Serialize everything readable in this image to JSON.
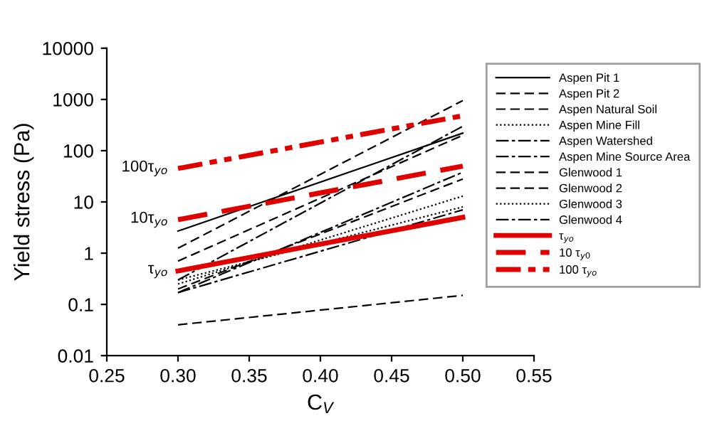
{
  "chart_data": {
    "type": "line",
    "xlabel": "C$_{V}$",
    "ylabel": "Yield stress (Pa)",
    "x": [
      0.3,
      0.5
    ],
    "series": [
      {
        "name": "Aspen Pit 1",
        "color": "#000000",
        "line_style": "solid",
        "values": [
          2.7,
          220
        ]
      },
      {
        "name": "Aspen Pit 2",
        "color": "#000000",
        "line_style": "dashed",
        "values": [
          1.25,
          950
        ]
      },
      {
        "name": "Aspen Natural Soil",
        "color": "#000000",
        "line_style": "dashed",
        "values": [
          0.7,
          200
        ]
      },
      {
        "name": "Aspen Mine Fill",
        "color": "#000000",
        "line_style": "dotted",
        "values": [
          0.25,
          13
        ]
      },
      {
        "name": "Aspen Watershed",
        "color": "#000000",
        "line_style": "dashdot",
        "values": [
          0.3,
          300
        ]
      },
      {
        "name": "Aspen Mine Source Area",
        "color": "#000000",
        "line_style": "dashdot",
        "values": [
          0.17,
          38
        ]
      },
      {
        "name": "Glenwood 1",
        "color": "#000000",
        "line_style": "dashed",
        "values": [
          0.2,
          28
        ]
      },
      {
        "name": "Glenwood 2",
        "color": "#000000",
        "line_style": "dashed",
        "values": [
          0.04,
          0.15
        ]
      },
      {
        "name": "Glenwood 3",
        "color": "#000000",
        "line_style": "dotted",
        "values": [
          0.3,
          8
        ]
      },
      {
        "name": "Glenwood 4",
        "color": "#000000",
        "line_style": "dashdot",
        "values": [
          0.17,
          7
        ]
      },
      {
        "name": "τ$_{yo}$",
        "color": "#e00000",
        "line_style": "solid",
        "values": [
          0.45,
          5
        ]
      },
      {
        "name": "10 τ$_{y0}$",
        "color": "#e00000",
        "line_style": "dashed",
        "values": [
          4.5,
          50
        ]
      },
      {
        "name": "100 τ$_{yo}$",
        "color": "#e00000",
        "line_style": "dashdotdot",
        "values": [
          45,
          480
        ]
      }
    ],
    "annotations": [
      "100τ$_{yo}$",
      "10τ$_{yo}$",
      "τ$_{yo}$"
    ],
    "log": "y",
    "xlim": [
      0.25,
      0.55
    ],
    "ylim": [
      0.01,
      10000
    ],
    "xticks": [
      {
        "value": 0.25,
        "label": "0.25"
      },
      {
        "value": 0.3,
        "label": "0.30"
      },
      {
        "value": 0.35,
        "label": "0.35"
      },
      {
        "value": 0.4,
        "label": "0.40"
      },
      {
        "value": 0.45,
        "label": "0.45"
      },
      {
        "value": 0.5,
        "label": "0.50"
      },
      {
        "value": 0.55,
        "label": "0.55"
      }
    ],
    "yticks": [
      {
        "value": 0.01,
        "label": "0.01"
      },
      {
        "value": 0.1,
        "label": "0.1"
      },
      1,
      10,
      100,
      1000,
      10000
    ],
    "grid": false,
    "legend": "right"
  }
}
